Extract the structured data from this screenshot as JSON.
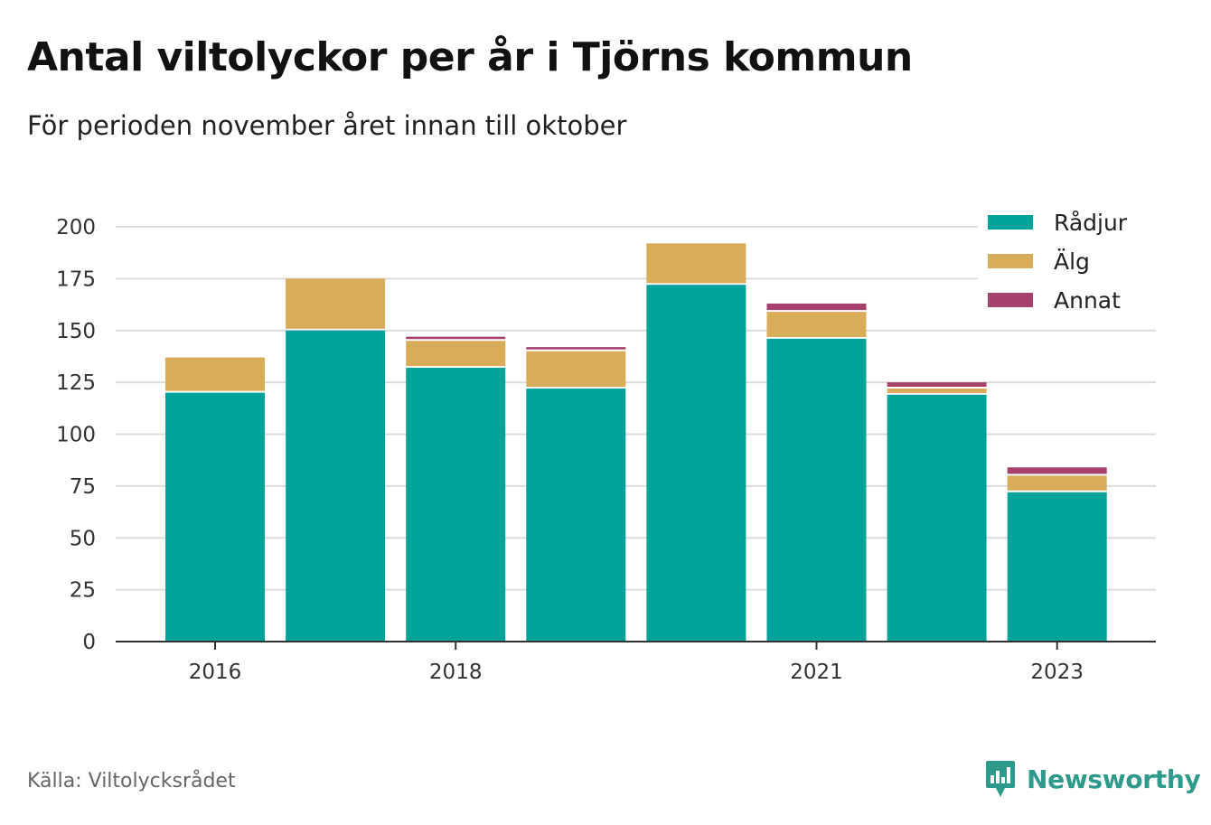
{
  "header": {
    "title": "Antal viltolyckor per år i Tjörns kommun",
    "subtitle": "För perioden november året innan till oktober"
  },
  "footer": {
    "source": "Källa: Viltolycksrådet",
    "brand": "Newsworthy",
    "brand_color": "#2e9a8b"
  },
  "chart_data": {
    "type": "bar",
    "stacked": true,
    "categories": [
      "2016",
      "2017",
      "2018",
      "2019",
      "2020",
      "2021",
      "2022",
      "2023"
    ],
    "x_tick_labels": [
      "2016",
      "",
      "2018",
      "",
      "",
      "2021",
      "",
      "2023"
    ],
    "series": [
      {
        "name": "Rådjur",
        "color": "#00a39a",
        "values": [
          120,
          150,
          132,
          122,
          172,
          146,
          119,
          72
        ]
      },
      {
        "name": "Älg",
        "color": "#d9ac5a",
        "values": [
          17,
          25,
          13,
          18,
          20,
          13,
          3,
          8
        ]
      },
      {
        "name": "Annat",
        "color": "#a6426c",
        "values": [
          0,
          0,
          2,
          2,
          0,
          4,
          3,
          4
        ]
      }
    ],
    "ylim": [
      0,
      200
    ],
    "y_ticks": [
      0,
      25,
      50,
      75,
      100,
      125,
      150,
      175,
      200
    ],
    "grid": true,
    "legend_position": "top-right"
  }
}
